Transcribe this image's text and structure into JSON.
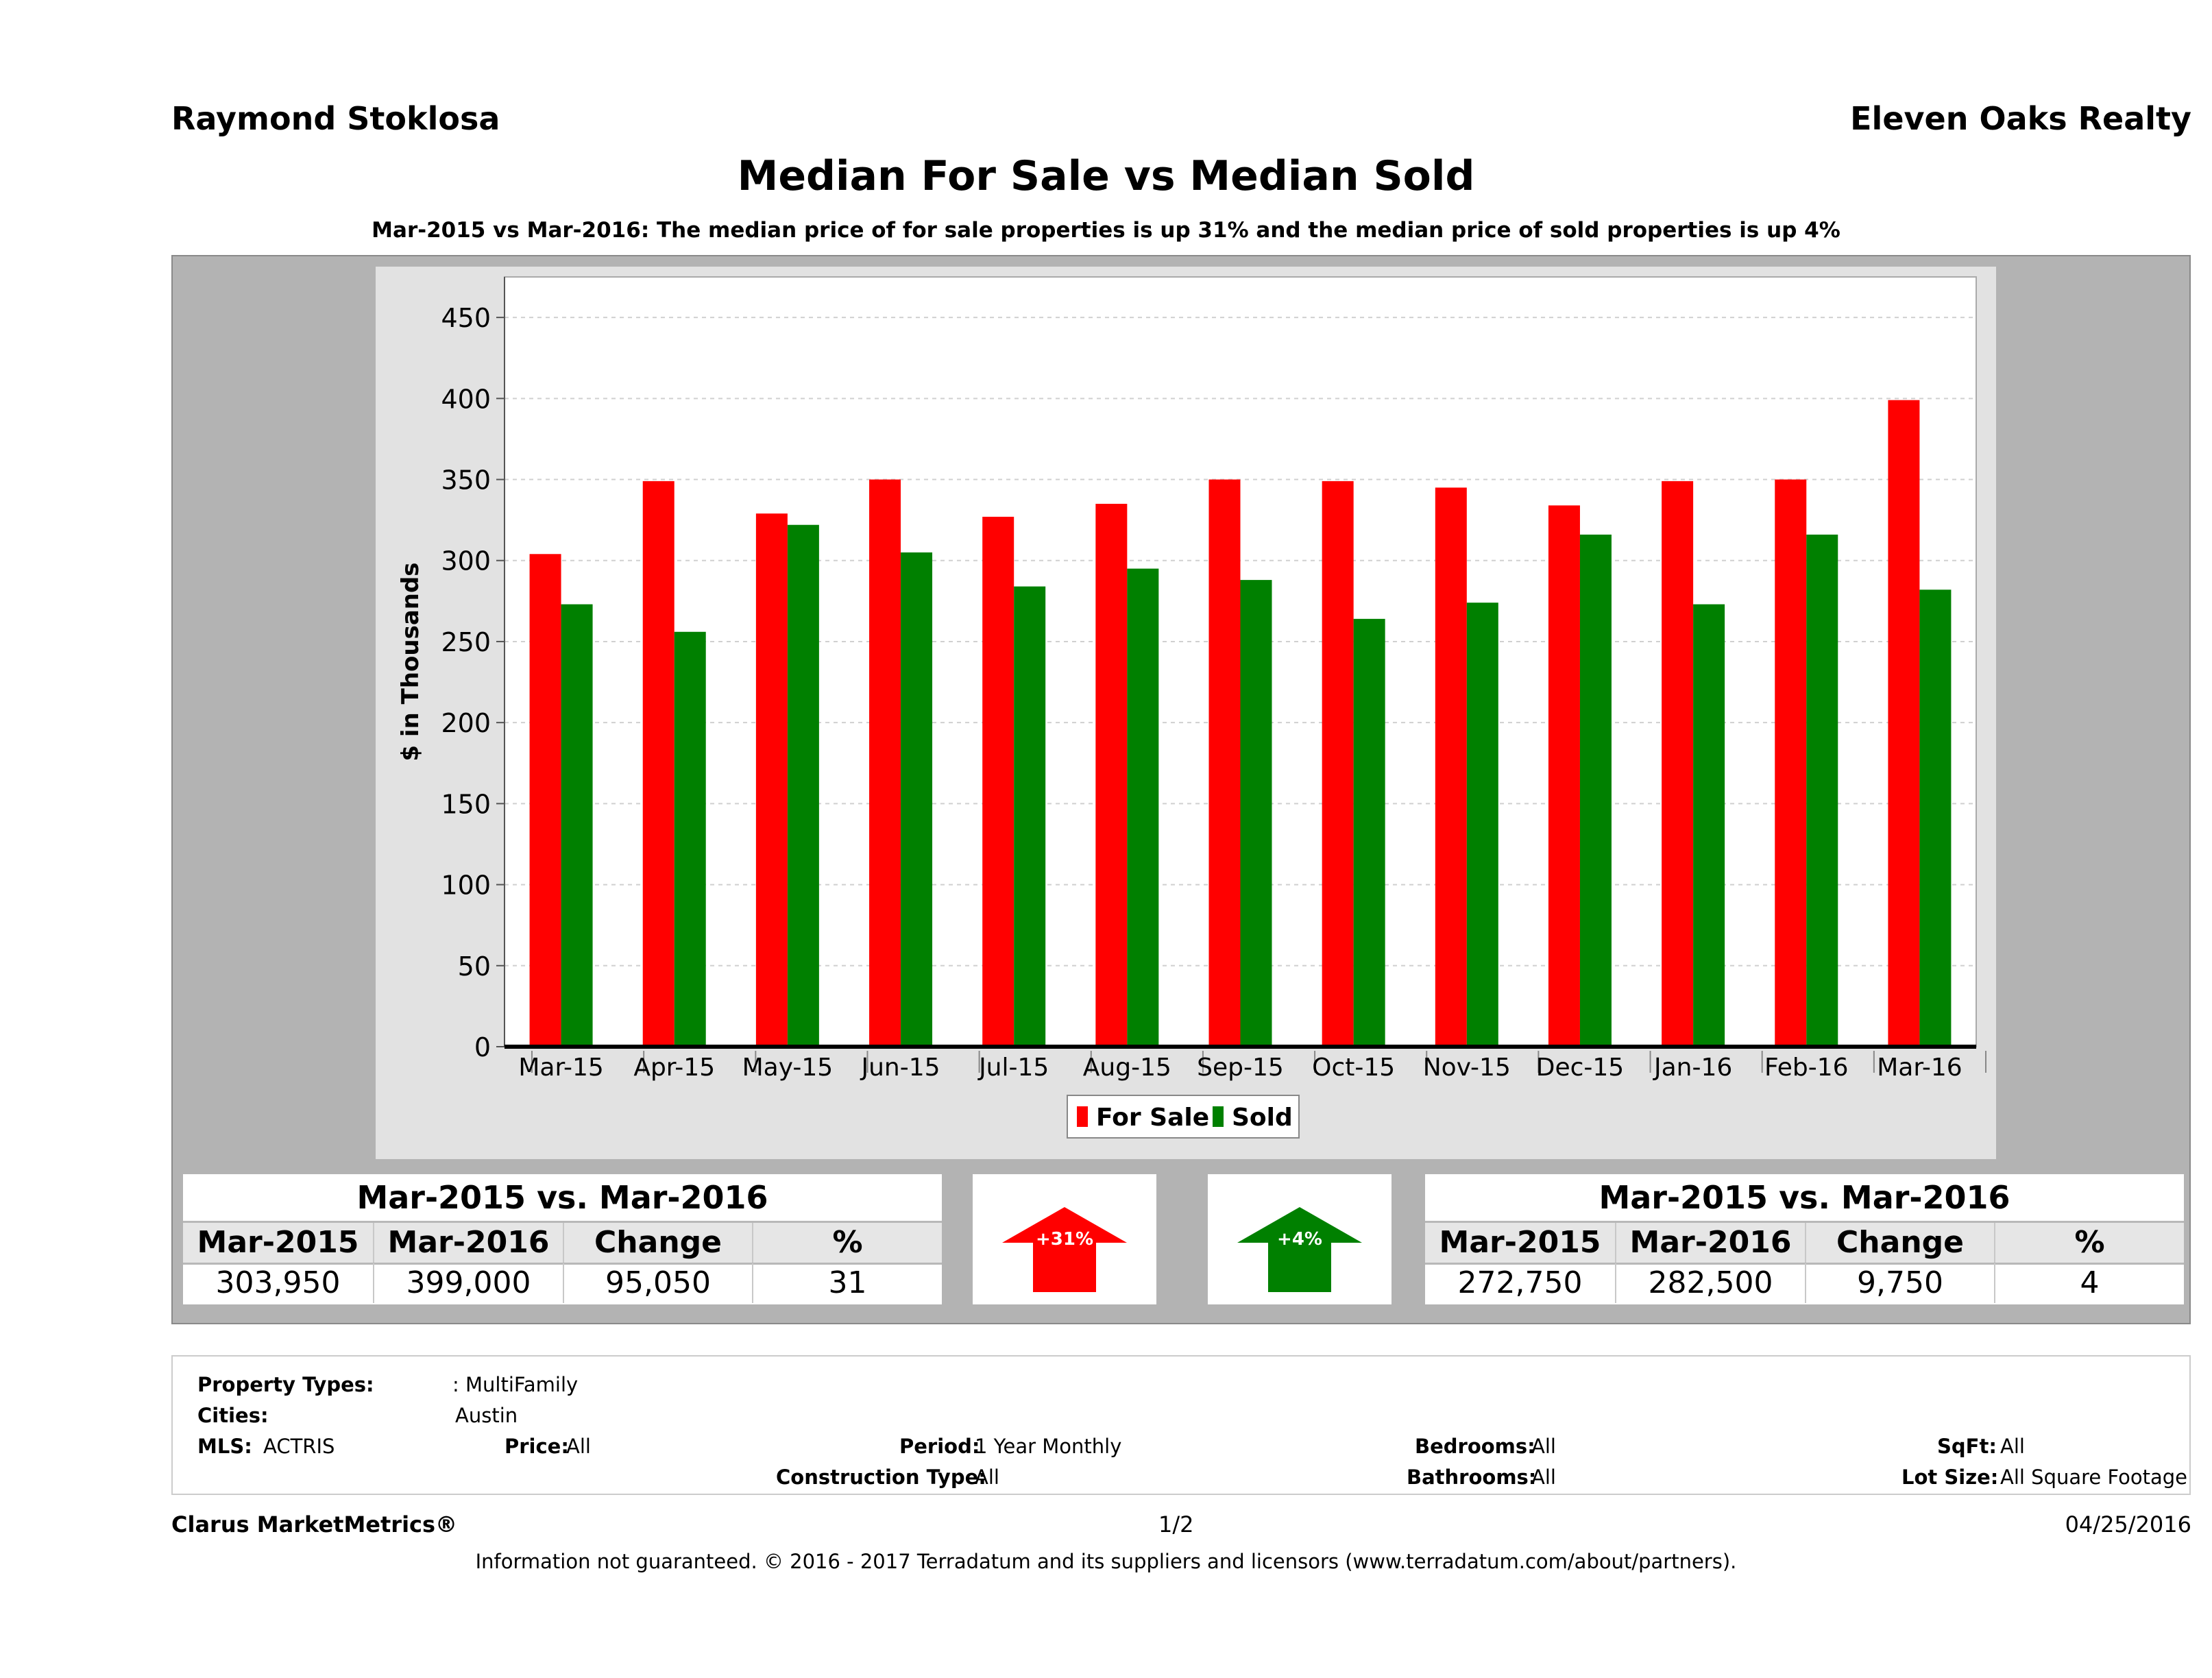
{
  "header": {
    "agent_name": "Raymond Stoklosa",
    "brokerage": "Eleven Oaks Realty",
    "title": "Median For Sale vs Median Sold",
    "subtitle": "Mar-2015 vs Mar-2016: The median price of for sale properties is up 31% and the median price of sold properties is up 4%"
  },
  "chart_data": {
    "type": "bar",
    "ylabel": "$ in Thousands",
    "ylim": [
      0,
      475
    ],
    "yticks": [
      0,
      50,
      100,
      150,
      200,
      250,
      300,
      350,
      400,
      450
    ],
    "grid": true,
    "legend_position": "bottom-center",
    "categories": [
      "Mar-15",
      "Apr-15",
      "May-15",
      "Jun-15",
      "Jul-15",
      "Aug-15",
      "Sep-15",
      "Oct-15",
      "Nov-15",
      "Dec-15",
      "Jan-16",
      "Feb-16",
      "Mar-16"
    ],
    "series": [
      {
        "name": "For Sale",
        "color": "#ff0000",
        "values": [
          304,
          349,
          329,
          350,
          327,
          335,
          350,
          349,
          345,
          334,
          349,
          350,
          399
        ]
      },
      {
        "name": "Sold",
        "color": "#008000",
        "values": [
          273,
          256,
          322,
          305,
          284,
          295,
          288,
          264,
          274,
          316,
          273,
          316,
          282
        ]
      }
    ]
  },
  "summary_for_sale": {
    "title": "Mar-2015 vs. Mar-2016",
    "headers": [
      "Mar-2015",
      "Mar-2016",
      "Change",
      "%"
    ],
    "values": [
      "303,950",
      "399,000",
      "95,050",
      "31"
    ],
    "arrow_label": "+31%",
    "arrow_color": "#ff0000"
  },
  "summary_sold": {
    "title": "Mar-2015 vs. Mar-2016",
    "headers": [
      "Mar-2015",
      "Mar-2016",
      "Change",
      "%"
    ],
    "values": [
      "272,750",
      "282,500",
      "9,750",
      "4"
    ],
    "arrow_label": "+4%",
    "arrow_color": "#008000"
  },
  "details": {
    "property_types_label": "Property Types:",
    "property_types_value": ": MultiFamily",
    "cities_label": "Cities:",
    "cities_value": "Austin",
    "mls_label": "MLS:",
    "mls_value": "ACTRIS",
    "price_label": "Price:",
    "price_value": "All",
    "period_label": "Period:",
    "period_value": "1 Year Monthly",
    "construction_label": "Construction Type:",
    "construction_value": "All",
    "bedrooms_label": "Bedrooms:",
    "bedrooms_value": "All",
    "bathrooms_label": "Bathrooms:",
    "bathrooms_value": "All",
    "sqft_label": "SqFt:",
    "sqft_value": "All",
    "lot_label": "Lot Size:",
    "lot_value": "All Square Footage"
  },
  "footer": {
    "product": "Clarus MarketMetrics®",
    "page": "1/2",
    "date": "04/25/2016",
    "disclaimer": "Information not guaranteed. © 2016 - 2017 Terradatum and its suppliers and licensors (www.terradatum.com/about/partners)."
  }
}
